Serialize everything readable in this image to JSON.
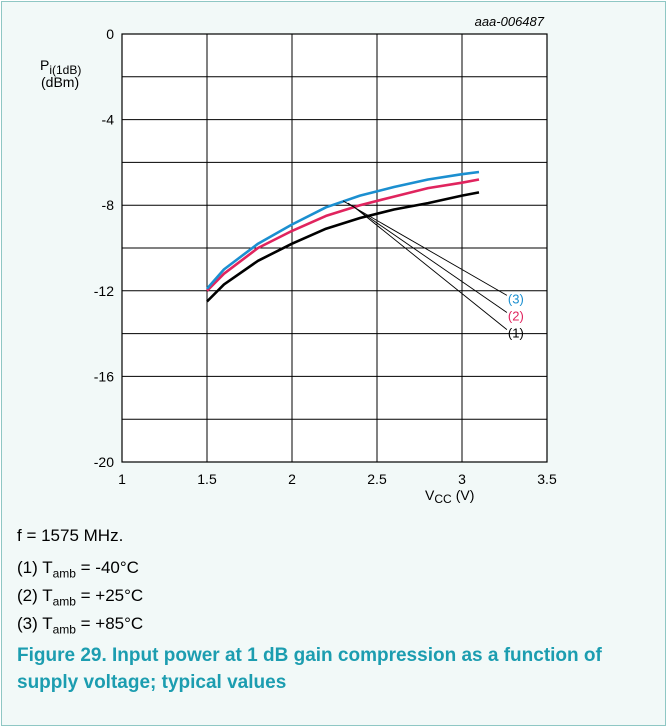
{
  "chart_data": {
    "type": "line",
    "figure_id": "aaa-006487",
    "ylabel_main": "P",
    "ylabel_sub": "i(1dB)",
    "ylabel_unit": "(dBm)",
    "xlabel_main": "V",
    "xlabel_sub": "CC",
    "xlabel_unit": "(V)",
    "xlim": [
      1,
      3.5
    ],
    "ylim": [
      -20,
      0
    ],
    "xticks": [
      1,
      1.5,
      2,
      2.5,
      3,
      3.5
    ],
    "xtick_labels": [
      "1",
      "1.5",
      "2",
      "2.5",
      "3",
      "3.5"
    ],
    "yticks": [
      0,
      -4,
      -8,
      -12,
      -16,
      -20
    ],
    "ytick_labels": [
      "0",
      "-4",
      "-8",
      "-12",
      "-16",
      "-20"
    ],
    "grid": true,
    "series": [
      {
        "name": "(1)",
        "color": "#000000",
        "x": [
          1.5,
          1.6,
          1.8,
          2.0,
          2.2,
          2.4,
          2.6,
          2.8,
          3.0,
          3.1
        ],
        "y": [
          -12.5,
          -11.7,
          -10.6,
          -9.8,
          -9.1,
          -8.6,
          -8.2,
          -7.9,
          -7.55,
          -7.4
        ]
      },
      {
        "name": "(2)",
        "color": "#e0245e",
        "x": [
          1.5,
          1.6,
          1.8,
          2.0,
          2.2,
          2.4,
          2.6,
          2.8,
          3.0,
          3.1
        ],
        "y": [
          -12.0,
          -11.2,
          -10.0,
          -9.2,
          -8.5,
          -8.0,
          -7.6,
          -7.2,
          -6.95,
          -6.8
        ]
      },
      {
        "name": "(3)",
        "color": "#1b8fd0",
        "x": [
          1.5,
          1.6,
          1.8,
          2.0,
          2.2,
          2.4,
          2.6,
          2.8,
          3.0,
          3.1
        ],
        "y": [
          -11.9,
          -11.0,
          -9.8,
          -8.9,
          -8.1,
          -7.55,
          -7.15,
          -6.8,
          -6.55,
          -6.45
        ]
      }
    ],
    "callouts": [
      {
        "label": "(3)",
        "color": "#1b8fd0",
        "anchor": [
          2.3,
          -7.8
        ],
        "target": [
          3.37,
          -12.4
        ]
      },
      {
        "label": "(2)",
        "color": "#e0245e",
        "anchor": [
          2.33,
          -7.9
        ],
        "target": [
          3.37,
          -13.2
        ]
      },
      {
        "label": "(1)",
        "color": "#000000",
        "anchor": [
          2.36,
          -8.05
        ],
        "target": [
          3.37,
          -14.0
        ]
      }
    ]
  },
  "notes": {
    "frequency": "f = 1575 MHz.",
    "items": [
      {
        "num": "(1) T",
        "sub": "amb",
        "value": " = -40°C"
      },
      {
        "num": "(2) T",
        "sub": "amb",
        "value": " = +25°C"
      },
      {
        "num": "(3) T",
        "sub": "amb",
        "value": " = +85°C"
      }
    ]
  },
  "caption": "Figure 29. Input power at 1 dB gain compression as a function of supply voltage; typical values"
}
